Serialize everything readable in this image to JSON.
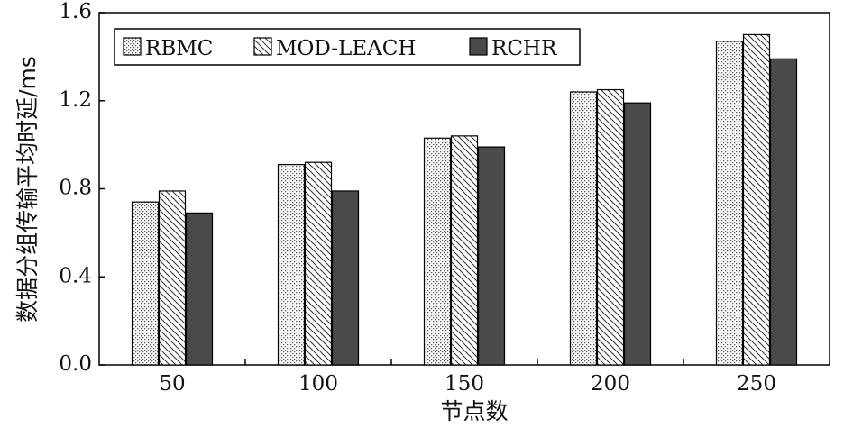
{
  "chart_data": {
    "type": "bar",
    "xlabel": "节点数",
    "ylabel": "数据分组传输平均时延/ms",
    "categories": [
      "50",
      "100",
      "150",
      "200",
      "250"
    ],
    "ylim": [
      0,
      1.6
    ],
    "yticks": [
      "0.0",
      "0.4",
      "0.8",
      "1.2",
      "1.6"
    ],
    "series": [
      {
        "name": "RBMC",
        "values": [
          0.74,
          0.91,
          1.03,
          1.24,
          1.47
        ],
        "pattern": "dots"
      },
      {
        "name": "MOD-LEACH",
        "values": [
          0.79,
          0.92,
          1.04,
          1.25,
          1.5
        ],
        "pattern": "diagonal"
      },
      {
        "name": "RCHR",
        "values": [
          0.69,
          0.79,
          0.99,
          1.19,
          1.39
        ],
        "pattern": "solid",
        "color": "#4a4a4a"
      }
    ],
    "legend": "top-left",
    "grid": false
  }
}
